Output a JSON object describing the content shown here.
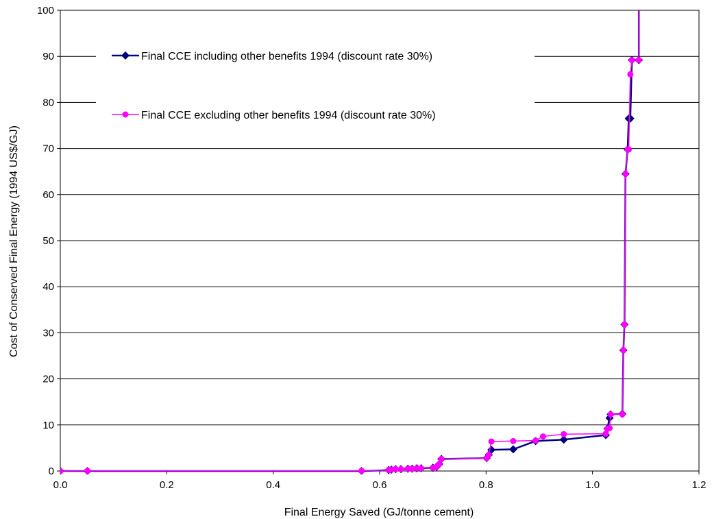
{
  "chart_data": {
    "type": "line",
    "title": "",
    "xlabel": "Final Energy Saved (GJ/tonne cement)",
    "ylabel": "Cost of Conserved Final Energy (1994 US$/GJ)",
    "xlim": [
      0,
      1.2
    ],
    "ylim": [
      0,
      100
    ],
    "xticks": [
      "0.0",
      "0.2",
      "0.4",
      "0.6",
      "0.8",
      "1.0",
      "1.2"
    ],
    "yticks": [
      "0",
      "10",
      "20",
      "30",
      "40",
      "50",
      "60",
      "70",
      "80",
      "90",
      "100"
    ],
    "grid": "horizontal",
    "legend_position": "top-left",
    "series": [
      {
        "name": "Final CCE including other benefits 1994 (discount rate 30%)",
        "color": "#000080",
        "marker": "diamond",
        "x": [
          0.0,
          0.051,
          0.566,
          0.617,
          0.622,
          0.63,
          0.64,
          0.653,
          0.661,
          0.67,
          0.678,
          0.7,
          0.707,
          0.712,
          0.716,
          0.801,
          0.805,
          0.81,
          0.851,
          0.893,
          0.946,
          1.025,
          1.028,
          1.032,
          1.034,
          1.056,
          1.058,
          1.06,
          1.062,
          1.066,
          1.068,
          1.071,
          1.074,
          1.087,
          1.087
        ],
        "y": [
          0.0,
          0.0,
          0.0,
          0.2,
          0.3,
          0.4,
          0.4,
          0.5,
          0.5,
          0.6,
          0.6,
          0.7,
          0.9,
          1.5,
          2.6,
          2.8,
          3.5,
          4.6,
          4.7,
          6.5,
          6.8,
          7.8,
          9.2,
          11.5,
          12.3,
          12.4,
          26.2,
          31.8,
          64.5,
          69.8,
          76.5,
          76.5,
          89.2,
          89.2,
          100.0
        ]
      },
      {
        "name": "Final CCE excluding other benefits 1994 (discount rate 30%)",
        "color": "#FF00FF",
        "marker": "circle",
        "x": [
          0.0,
          0.051,
          0.566,
          0.617,
          0.622,
          0.63,
          0.64,
          0.653,
          0.661,
          0.67,
          0.678,
          0.7,
          0.707,
          0.712,
          0.716,
          0.801,
          0.805,
          0.81,
          0.851,
          0.893,
          0.907,
          0.946,
          1.025,
          1.028,
          1.032,
          1.034,
          1.056,
          1.058,
          1.06,
          1.062,
          1.066,
          1.068,
          1.071,
          1.074,
          1.087,
          1.087
        ],
        "y": [
          0.0,
          0.05,
          0.05,
          0.2,
          0.3,
          0.4,
          0.4,
          0.5,
          0.5,
          0.6,
          0.6,
          0.7,
          0.9,
          1.5,
          2.6,
          2.8,
          3.5,
          6.4,
          6.5,
          6.6,
          7.5,
          8.0,
          8.1,
          9.2,
          9.3,
          12.3,
          12.3,
          26.2,
          31.8,
          64.5,
          69.8,
          69.8,
          86.1,
          89.2,
          89.2,
          100.0
        ]
      }
    ]
  }
}
